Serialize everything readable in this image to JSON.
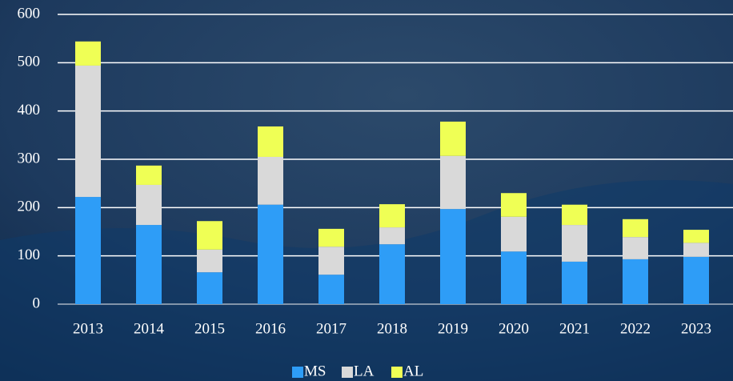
{
  "chart_data": {
    "type": "stacked_bar",
    "categories": [
      "2013",
      "2014",
      "2015",
      "2016",
      "2017",
      "2018",
      "2019",
      "2020",
      "2021",
      "2022",
      "2023"
    ],
    "series": [
      {
        "name": "MS",
        "color": "#2e9df7",
        "values": [
          222,
          164,
          66,
          206,
          61,
          124,
          197,
          109,
          88,
          93,
          98
        ]
      },
      {
        "name": "LA",
        "color": "#d9d9d9",
        "values": [
          272,
          83,
          47,
          99,
          58,
          35,
          110,
          72,
          76,
          46,
          29
        ]
      },
      {
        "name": "AL",
        "color": "#efff55",
        "values": [
          50,
          40,
          59,
          63,
          37,
          48,
          71,
          49,
          42,
          37,
          27
        ]
      }
    ],
    "ylim": [
      0,
      600
    ],
    "yticks": [
      0,
      100,
      200,
      300,
      400,
      500,
      600
    ],
    "grid": true,
    "legend": "bottom"
  }
}
